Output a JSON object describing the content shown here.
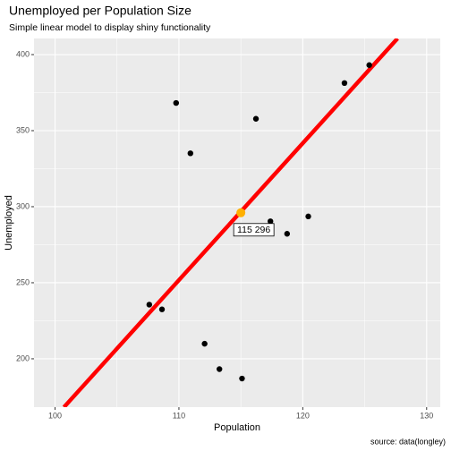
{
  "chart_data": {
    "type": "scatter",
    "title": "Unemployed per Population Size",
    "subtitle": "Simple linear model to display shiny functionality",
    "xlabel": "Population",
    "ylabel": "Unemployed",
    "caption": "source: data(longley)",
    "xlim": [
      98.3,
      131.1
    ],
    "xticks": [
      100,
      110,
      120,
      130
    ],
    "ylim": [
      168.2,
      410.6
    ],
    "yticks": [
      200,
      250,
      300,
      350,
      400
    ],
    "grid": true,
    "series": [
      {
        "color": "#000000",
        "x": [
          107.608,
          108.632,
          109.773,
          110.929,
          112.075,
          113.27,
          115.094,
          116.219,
          117.388,
          118.734,
          120.445,
          123.366,
          125.368
        ],
        "values": [
          235.6,
          232.5,
          368.2,
          335.1,
          209.9,
          193.2,
          187.0,
          357.8,
          290.4,
          282.2,
          293.6,
          381.3,
          393.1
        ]
      }
    ],
    "fit": {
      "color": "#ff0000",
      "x": [
        100.72,
        127.65
      ],
      "values": [
        168.2,
        410.6
      ]
    },
    "highlight": {
      "color": "#ffb000",
      "x": 115,
      "value": 296,
      "label": "115 296"
    }
  }
}
